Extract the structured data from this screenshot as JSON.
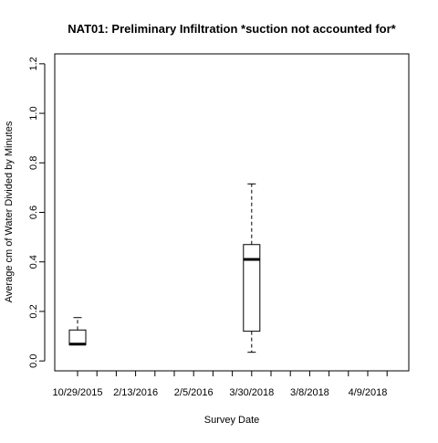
{
  "chart_data": {
    "type": "boxplot",
    "title": "NAT01: Preliminary Infiltration *suction not accounted for*",
    "xlabel": "Survey Date",
    "ylabel": "Average cm of Water Divided by Minutes",
    "ylim": [
      -0.04,
      1.24
    ],
    "yticks": [
      0.0,
      0.2,
      0.4,
      0.6,
      0.8,
      1.0,
      1.2
    ],
    "ytick_labels": [
      "0.0",
      "0.2",
      "0.4",
      "0.6",
      "0.8",
      "1.0",
      "1.2"
    ],
    "category_count": 17,
    "xtick_labels": [
      {
        "position": 1,
        "label": "10/29/2015"
      },
      {
        "position": 4,
        "label": "2/13/2016"
      },
      {
        "position": 7,
        "label": "2/5/2016"
      },
      {
        "position": 10,
        "label": "3/30/2018"
      },
      {
        "position": 13,
        "label": "3/8/2018"
      },
      {
        "position": 16,
        "label": "4/9/2018"
      }
    ],
    "boxes": [
      {
        "position": 1,
        "whisker_low": 0.065,
        "q1": 0.065,
        "median": 0.068,
        "q3": 0.125,
        "whisker_high": 0.175
      },
      {
        "position": 10,
        "whisker_low": 0.035,
        "q1": 0.12,
        "median": 0.41,
        "q3": 0.47,
        "whisker_high": 0.715
      }
    ],
    "grid": false,
    "legend": "none"
  }
}
